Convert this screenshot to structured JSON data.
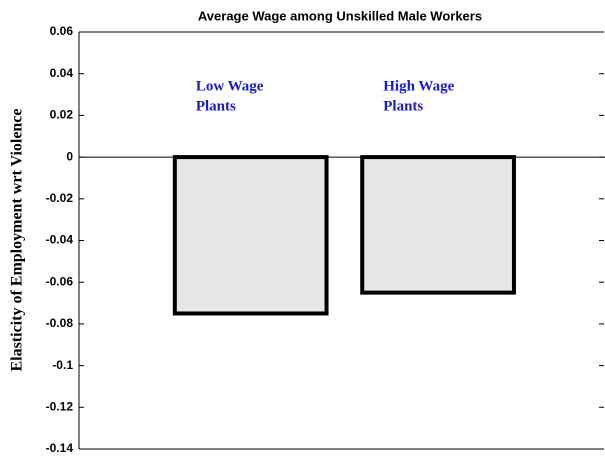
{
  "chart_data": {
    "type": "bar",
    "title": "Average Wage among Unskilled Male Workers",
    "y_label": "Elasticity of Employment wrt Violence",
    "categories": [
      null,
      null
    ],
    "values": [
      -0.075,
      -0.065
    ],
    "color": "#e6e6e6",
    "edge_color": "#000000",
    "annotations": [
      {
        "text": [
          "Low Wage",
          "Plants"
        ]
      },
      {
        "text": [
          "High Wage",
          "Plants"
        ]
      }
    ],
    "annotation_color": "#1a1acc",
    "ylim": [
      -0.14,
      0.06
    ],
    "yticks": [
      -0.14,
      -0.12,
      -0.1,
      -0.08,
      -0.06,
      -0.04,
      -0.02,
      0,
      0.02,
      0.04,
      0.06
    ],
    "grid": false
  }
}
